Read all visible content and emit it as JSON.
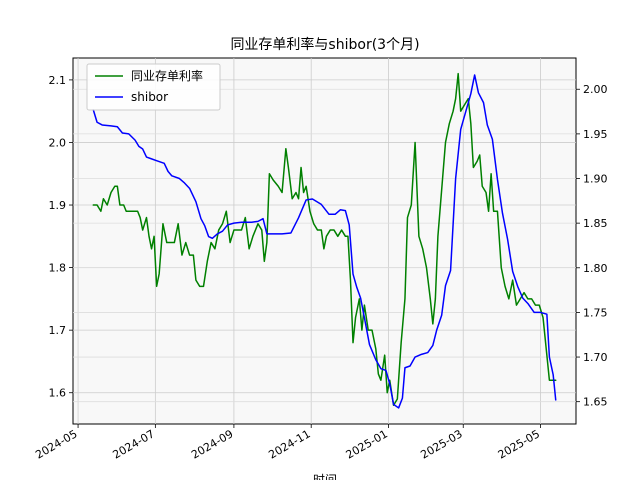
{
  "chart_data": {
    "type": "line",
    "title": "同业存单利率与shibor(3个月)",
    "xlabel": "时间",
    "ylabel_left": "",
    "ylabel_right": "",
    "x_start": "2024-05-13",
    "x_end": "2025-05-13",
    "xlim": [
      "2024-04-27",
      "2025-05-29"
    ],
    "ylim_left": [
      1.55,
      2.135
    ],
    "ylim_right": [
      1.625,
      2.035
    ],
    "yticks_left": [
      1.6,
      1.7,
      1.8,
      1.9,
      2.0,
      2.1
    ],
    "yticks_right": [
      1.65,
      1.7,
      1.75,
      1.8,
      1.85,
      1.9,
      1.95,
      2.0
    ],
    "xticks": [
      {
        "date": "2024-05-01",
        "label": "2024-05"
      },
      {
        "date": "2024-07-01",
        "label": "2024-07"
      },
      {
        "date": "2024-09-01",
        "label": "2024-09"
      },
      {
        "date": "2024-11-01",
        "label": "2024-11"
      },
      {
        "date": "2025-01-01",
        "label": "2025-01"
      },
      {
        "date": "2025-03-01",
        "label": "2025-03"
      },
      {
        "date": "2025-05-01",
        "label": "2025-05"
      }
    ],
    "grid": true,
    "legend_position": "top-left",
    "series": [
      {
        "name": "同业存单利率",
        "axis": "left",
        "color": "#008000",
        "points": [
          [
            "2024-05-13",
            1.9
          ],
          [
            "2024-05-16",
            1.9
          ],
          [
            "2024-05-19",
            1.89
          ],
          [
            "2024-05-21",
            1.91
          ],
          [
            "2024-05-24",
            1.9
          ],
          [
            "2024-05-27",
            1.92
          ],
          [
            "2024-05-30",
            1.93
          ],
          [
            "2024-06-01",
            1.93
          ],
          [
            "2024-06-03",
            1.9
          ],
          [
            "2024-06-06",
            1.9
          ],
          [
            "2024-06-08",
            1.89
          ],
          [
            "2024-06-11",
            1.89
          ],
          [
            "2024-06-14",
            1.89
          ],
          [
            "2024-06-17",
            1.89
          ],
          [
            "2024-06-19",
            1.88
          ],
          [
            "2024-06-21",
            1.86
          ],
          [
            "2024-06-24",
            1.88
          ],
          [
            "2024-06-26",
            1.85
          ],
          [
            "2024-06-28",
            1.83
          ],
          [
            "2024-06-30",
            1.85
          ],
          [
            "2024-07-02",
            1.77
          ],
          [
            "2024-07-04",
            1.79
          ],
          [
            "2024-07-07",
            1.87
          ],
          [
            "2024-07-10",
            1.84
          ],
          [
            "2024-07-13",
            1.84
          ],
          [
            "2024-07-16",
            1.84
          ],
          [
            "2024-07-19",
            1.87
          ],
          [
            "2024-07-22",
            1.82
          ],
          [
            "2024-07-25",
            1.84
          ],
          [
            "2024-07-28",
            1.82
          ],
          [
            "2024-07-31",
            1.82
          ],
          [
            "2024-08-02",
            1.78
          ],
          [
            "2024-08-05",
            1.77
          ],
          [
            "2024-08-08",
            1.77
          ],
          [
            "2024-08-11",
            1.81
          ],
          [
            "2024-08-14",
            1.84
          ],
          [
            "2024-08-17",
            1.83
          ],
          [
            "2024-08-20",
            1.86
          ],
          [
            "2024-08-23",
            1.87
          ],
          [
            "2024-08-26",
            1.89
          ],
          [
            "2024-08-29",
            1.84
          ],
          [
            "2024-09-01",
            1.86
          ],
          [
            "2024-09-04",
            1.86
          ],
          [
            "2024-09-07",
            1.86
          ],
          [
            "2024-09-10",
            1.88
          ],
          [
            "2024-09-13",
            1.83
          ],
          [
            "2024-09-16",
            1.85
          ],
          [
            "2024-09-20",
            1.87
          ],
          [
            "2024-09-23",
            1.86
          ],
          [
            "2024-09-25",
            1.81
          ],
          [
            "2024-09-27",
            1.84
          ],
          [
            "2024-09-29",
            1.95
          ],
          [
            "2024-10-02",
            1.94
          ],
          [
            "2024-10-06",
            1.93
          ],
          [
            "2024-10-09",
            1.92
          ],
          [
            "2024-10-12",
            1.99
          ],
          [
            "2024-10-14",
            1.96
          ],
          [
            "2024-10-17",
            1.91
          ],
          [
            "2024-10-20",
            1.92
          ],
          [
            "2024-10-22",
            1.91
          ],
          [
            "2024-10-24",
            1.96
          ],
          [
            "2024-10-26",
            1.92
          ],
          [
            "2024-10-28",
            1.93
          ],
          [
            "2024-10-31",
            1.89
          ],
          [
            "2024-11-03",
            1.87
          ],
          [
            "2024-11-06",
            1.86
          ],
          [
            "2024-11-09",
            1.86
          ],
          [
            "2024-11-11",
            1.83
          ],
          [
            "2024-11-13",
            1.85
          ],
          [
            "2024-11-16",
            1.86
          ],
          [
            "2024-11-19",
            1.86
          ],
          [
            "2024-11-22",
            1.85
          ],
          [
            "2024-11-25",
            1.86
          ],
          [
            "2024-11-28",
            1.85
          ],
          [
            "2024-11-30",
            1.85
          ],
          [
            "2024-12-02",
            1.78
          ],
          [
            "2024-12-04",
            1.68
          ],
          [
            "2024-12-06",
            1.72
          ],
          [
            "2024-12-09",
            1.75
          ],
          [
            "2024-12-11",
            1.7
          ],
          [
            "2024-12-13",
            1.74
          ],
          [
            "2024-12-16",
            1.7
          ],
          [
            "2024-12-19",
            1.7
          ],
          [
            "2024-12-22",
            1.67
          ],
          [
            "2024-12-24",
            1.63
          ],
          [
            "2024-12-26",
            1.62
          ],
          [
            "2024-12-29",
            1.66
          ],
          [
            "2024-12-31",
            1.6
          ],
          [
            "2025-01-02",
            1.62
          ],
          [
            "2025-01-05",
            1.58
          ],
          [
            "2025-01-08",
            1.59
          ],
          [
            "2025-01-11",
            1.68
          ],
          [
            "2025-01-14",
            1.75
          ],
          [
            "2025-01-16",
            1.88
          ],
          [
            "2025-01-19",
            1.9
          ],
          [
            "2025-01-22",
            2.0
          ],
          [
            "2025-01-25",
            1.85
          ],
          [
            "2025-01-28",
            1.83
          ],
          [
            "2025-01-31",
            1.8
          ],
          [
            "2025-02-03",
            1.75
          ],
          [
            "2025-02-05",
            1.71
          ],
          [
            "2025-02-07",
            1.75
          ],
          [
            "2025-02-09",
            1.85
          ],
          [
            "2025-02-11",
            1.9
          ],
          [
            "2025-02-13",
            1.95
          ],
          [
            "2025-02-15",
            2.0
          ],
          [
            "2025-02-18",
            2.03
          ],
          [
            "2025-02-21",
            2.05
          ],
          [
            "2025-02-23",
            2.07
          ],
          [
            "2025-02-25",
            2.11
          ],
          [
            "2025-02-27",
            2.05
          ],
          [
            "2025-03-02",
            2.06
          ],
          [
            "2025-03-05",
            2.07
          ],
          [
            "2025-03-07",
            2.03
          ],
          [
            "2025-03-09",
            1.96
          ],
          [
            "2025-03-12",
            1.97
          ],
          [
            "2025-03-14",
            1.98
          ],
          [
            "2025-03-16",
            1.93
          ],
          [
            "2025-03-19",
            1.92
          ],
          [
            "2025-03-21",
            1.89
          ],
          [
            "2025-03-23",
            1.95
          ],
          [
            "2025-03-25",
            1.89
          ],
          [
            "2025-03-28",
            1.89
          ],
          [
            "2025-03-31",
            1.8
          ],
          [
            "2025-04-03",
            1.77
          ],
          [
            "2025-04-06",
            1.75
          ],
          [
            "2025-04-09",
            1.78
          ],
          [
            "2025-04-12",
            1.74
          ],
          [
            "2025-04-15",
            1.75
          ],
          [
            "2025-04-18",
            1.76
          ],
          [
            "2025-04-21",
            1.75
          ],
          [
            "2025-04-24",
            1.75
          ],
          [
            "2025-04-27",
            1.74
          ],
          [
            "2025-04-30",
            1.74
          ],
          [
            "2025-05-03",
            1.72
          ],
          [
            "2025-05-06",
            1.66
          ],
          [
            "2025-05-08",
            1.62
          ],
          [
            "2025-05-11",
            1.62
          ],
          [
            "2025-05-13",
            1.62
          ]
        ]
      },
      {
        "name": "shibor",
        "axis": "right",
        "color": "#0000ff",
        "points": [
          [
            "2024-05-13",
            1.977
          ],
          [
            "2024-05-16",
            1.963
          ],
          [
            "2024-05-20",
            1.96
          ],
          [
            "2024-05-27",
            1.959
          ],
          [
            "2024-06-01",
            1.958
          ],
          [
            "2024-06-05",
            1.951
          ],
          [
            "2024-06-10",
            1.95
          ],
          [
            "2024-06-15",
            1.943
          ],
          [
            "2024-06-18",
            1.936
          ],
          [
            "2024-06-21",
            1.933
          ],
          [
            "2024-06-24",
            1.924
          ],
          [
            "2024-06-28",
            1.922
          ],
          [
            "2024-07-02",
            1.92
          ],
          [
            "2024-07-08",
            1.917
          ],
          [
            "2024-07-11",
            1.908
          ],
          [
            "2024-07-14",
            1.903
          ],
          [
            "2024-07-20",
            1.9
          ],
          [
            "2024-07-24",
            1.895
          ],
          [
            "2024-07-28",
            1.889
          ],
          [
            "2024-08-02",
            1.874
          ],
          [
            "2024-08-06",
            1.855
          ],
          [
            "2024-08-09",
            1.847
          ],
          [
            "2024-08-12",
            1.835
          ],
          [
            "2024-08-15",
            1.833
          ],
          [
            "2024-08-19",
            1.838
          ],
          [
            "2024-08-23",
            1.841
          ],
          [
            "2024-08-27",
            1.848
          ],
          [
            "2024-09-01",
            1.85
          ],
          [
            "2024-09-07",
            1.851
          ],
          [
            "2024-09-15",
            1.851
          ],
          [
            "2024-09-20",
            1.852
          ],
          [
            "2024-09-24",
            1.855
          ],
          [
            "2024-09-27",
            1.838
          ],
          [
            "2024-10-02",
            1.838
          ],
          [
            "2024-10-09",
            1.838
          ],
          [
            "2024-10-16",
            1.839
          ],
          [
            "2024-10-22",
            1.856
          ],
          [
            "2024-10-28",
            1.876
          ],
          [
            "2024-11-02",
            1.877
          ],
          [
            "2024-11-09",
            1.871
          ],
          [
            "2024-11-15",
            1.86
          ],
          [
            "2024-11-20",
            1.86
          ],
          [
            "2024-11-24",
            1.865
          ],
          [
            "2024-11-28",
            1.864
          ],
          [
            "2024-12-01",
            1.848
          ],
          [
            "2024-12-04",
            1.793
          ],
          [
            "2024-12-07",
            1.778
          ],
          [
            "2024-12-10",
            1.766
          ],
          [
            "2024-12-13",
            1.744
          ],
          [
            "2024-12-17",
            1.714
          ],
          [
            "2024-12-22",
            1.697
          ],
          [
            "2024-12-26",
            1.687
          ],
          [
            "2024-12-30",
            1.685
          ],
          [
            "2025-01-02",
            1.67
          ],
          [
            "2025-01-05",
            1.647
          ],
          [
            "2025-01-09",
            1.643
          ],
          [
            "2025-01-12",
            1.654
          ],
          [
            "2025-01-14",
            1.688
          ],
          [
            "2025-01-18",
            1.69
          ],
          [
            "2025-01-22",
            1.7
          ],
          [
            "2025-01-27",
            1.703
          ],
          [
            "2025-02-01",
            1.705
          ],
          [
            "2025-02-05",
            1.713
          ],
          [
            "2025-02-08",
            1.73
          ],
          [
            "2025-02-12",
            1.747
          ],
          [
            "2025-02-15",
            1.78
          ],
          [
            "2025-02-19",
            1.797
          ],
          [
            "2025-02-23",
            1.9
          ],
          [
            "2025-02-27",
            1.955
          ],
          [
            "2025-03-03",
            1.975
          ],
          [
            "2025-03-07",
            1.995
          ],
          [
            "2025-03-10",
            2.016
          ],
          [
            "2025-03-13",
            1.996
          ],
          [
            "2025-03-17",
            1.985
          ],
          [
            "2025-03-20",
            1.96
          ],
          [
            "2025-03-24",
            1.944
          ],
          [
            "2025-03-28",
            1.899
          ],
          [
            "2025-04-01",
            1.861
          ],
          [
            "2025-04-05",
            1.832
          ],
          [
            "2025-04-09",
            1.796
          ],
          [
            "2025-04-13",
            1.779
          ],
          [
            "2025-04-17",
            1.766
          ],
          [
            "2025-04-21",
            1.76
          ],
          [
            "2025-04-26",
            1.75
          ],
          [
            "2025-05-01",
            1.75
          ],
          [
            "2025-05-06",
            1.748
          ],
          [
            "2025-05-08",
            1.7
          ],
          [
            "2025-05-11",
            1.68
          ],
          [
            "2025-05-13",
            1.652
          ]
        ]
      }
    ]
  }
}
